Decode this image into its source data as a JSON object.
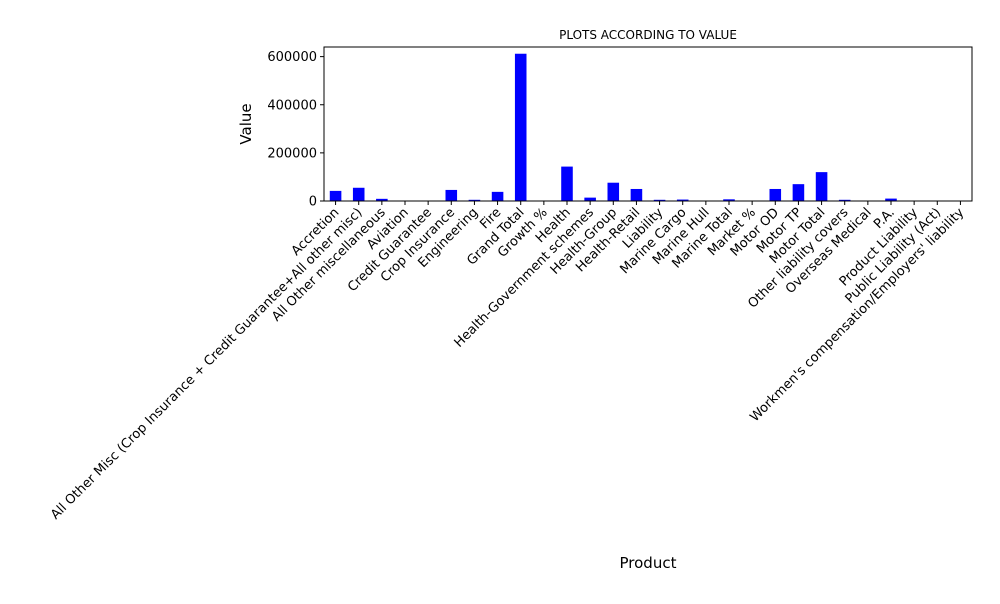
{
  "chart_data": {
    "type": "bar",
    "title": "PLOTS ACCORDING TO VALUE",
    "xlabel": "Product",
    "ylabel": "Value",
    "ylim": [
      0,
      640000
    ],
    "yticks": [
      0,
      200000,
      400000,
      600000
    ],
    "ytick_labels": [
      "0",
      "200000",
      "400000",
      "600000"
    ],
    "bar_color": "#0000ff",
    "grid": false,
    "legend": "none",
    "categories": [
      "Accretion",
      "All Other Misc (Crop Insurance + Credit Guarantee+All other misc)",
      "All Other miscellaneous",
      "Aviation",
      "Credit Guarantee",
      "Crop Insurance",
      "Engineering",
      "Fire",
      "Grand Total",
      "Growth %",
      "Health",
      "Health-Government schemes",
      "Health-Group",
      "Health-Retail",
      "Liability",
      "Marine Cargo",
      "Marine Hull",
      "Marine Total",
      "Market %",
      "Motor OD",
      "Motor TP",
      "Motor Total",
      "Other liability covers",
      "Overseas Medical",
      "P.A.",
      "Product Liability",
      "Public Liability (Act)",
      "Workmen's compensation/Employers' liability"
    ],
    "values": [
      42000,
      55000,
      9000,
      1500,
      500,
      46000,
      5000,
      38000,
      612000,
      200,
      143000,
      14000,
      76000,
      50000,
      5000,
      6000,
      1000,
      7000,
      200,
      50000,
      70000,
      120000,
      5000,
      1000,
      10000,
      500,
      300,
      1500
    ]
  }
}
